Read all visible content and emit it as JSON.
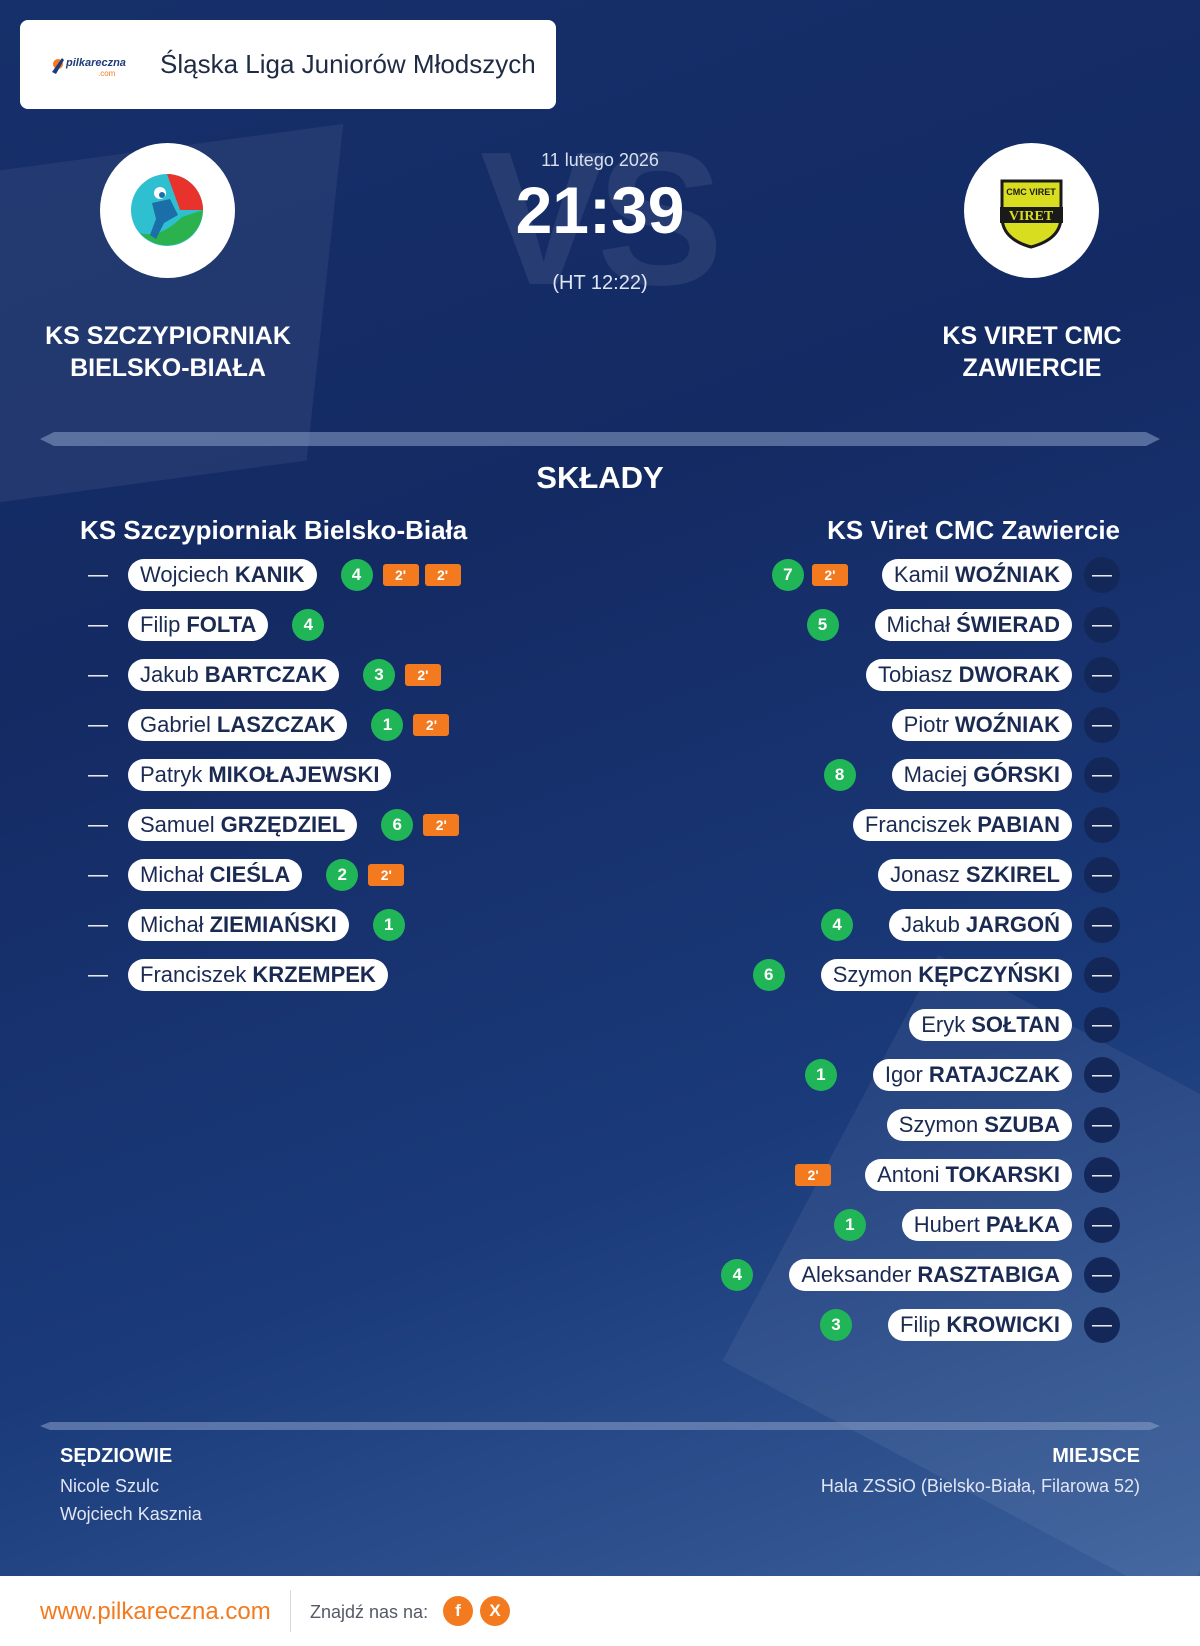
{
  "header": {
    "logo_text": "pilkareczna",
    "logo_sub": ".com",
    "league": "Śląska Liga Juniorów Młodszych"
  },
  "match": {
    "date": "11 lutego 2026",
    "score": "21:39",
    "halftime": "(HT 12:22)",
    "vs_text": "VS"
  },
  "home": {
    "name_line1": "KS SZCZYPIORNIAK",
    "name_line2": "BIELSKO-BIAŁA",
    "lineup_title": "KS Szczypiorniak Bielsko-Biała",
    "crest_colors": [
      "#2ec0d0",
      "#2bb24c",
      "#e8322c"
    ]
  },
  "away": {
    "name_line1": "KS VIRET CMC",
    "name_line2": "ZAWIERCIE",
    "lineup_title": "KS Viret CMC Zawiercie",
    "crest_text_top": "CMC VIRET",
    "crest_text_main": "VIRET",
    "crest_colors": [
      "#d8dd1f",
      "#1a1a1a"
    ]
  },
  "lineups_label": "SKŁADY",
  "dash_symbol": "—",
  "suspension_label": "2'",
  "home_players": [
    {
      "first": "Wojciech",
      "last": "KANIK",
      "goals": "4",
      "suspensions": 2
    },
    {
      "first": "Filip",
      "last": "FOLTA",
      "goals": "4",
      "suspensions": 0
    },
    {
      "first": "Jakub",
      "last": "BARTCZAK",
      "goals": "3",
      "suspensions": 1
    },
    {
      "first": "Gabriel",
      "last": "LASZCZAK",
      "goals": "1",
      "suspensions": 1
    },
    {
      "first": "Patryk",
      "last": "MIKOŁAJEWSKI",
      "goals": "",
      "suspensions": 0
    },
    {
      "first": "Samuel",
      "last": "GRZĘDZIEL",
      "goals": "6",
      "suspensions": 1
    },
    {
      "first": "Michał",
      "last": "CIEŚLA",
      "goals": "2",
      "suspensions": 1
    },
    {
      "first": "Michał",
      "last": "ZIEMIAŃSKI",
      "goals": "1",
      "suspensions": 0
    },
    {
      "first": "Franciszek",
      "last": "KRZEMPEK",
      "goals": "",
      "suspensions": 0
    }
  ],
  "away_players": [
    {
      "first": "Kamil",
      "last": "WOŹNIAK",
      "goals": "7",
      "suspensions": 1
    },
    {
      "first": "Michał",
      "last": "ŚWIERAD",
      "goals": "5",
      "suspensions": 0
    },
    {
      "first": "Tobiasz",
      "last": "DWORAK",
      "goals": "",
      "suspensions": 0
    },
    {
      "first": "Piotr",
      "last": "WOŹNIAK",
      "goals": "",
      "suspensions": 0
    },
    {
      "first": "Maciej",
      "last": "GÓRSKI",
      "goals": "8",
      "suspensions": 0
    },
    {
      "first": "Franciszek",
      "last": "PABIAN",
      "goals": "",
      "suspensions": 0
    },
    {
      "first": "Jonasz",
      "last": "SZKIREL",
      "goals": "",
      "suspensions": 0
    },
    {
      "first": "Jakub",
      "last": "JARGOŃ",
      "goals": "4",
      "suspensions": 0
    },
    {
      "first": "Szymon",
      "last": "KĘPCZYŃSKI",
      "goals": "6",
      "suspensions": 0
    },
    {
      "first": "Eryk",
      "last": "SOŁTAN",
      "goals": "",
      "suspensions": 0
    },
    {
      "first": "Igor",
      "last": "RATAJCZAK",
      "goals": "1",
      "suspensions": 0
    },
    {
      "first": "Szymon",
      "last": "SZUBA",
      "goals": "",
      "suspensions": 0
    },
    {
      "first": "Antoni",
      "last": "TOKARSKI",
      "goals": "",
      "suspensions": 1
    },
    {
      "first": "Hubert",
      "last": "PAŁKA",
      "goals": "1",
      "suspensions": 0
    },
    {
      "first": "Aleksander",
      "last": "RASZTABIGA",
      "goals": "4",
      "suspensions": 0
    },
    {
      "first": "Filip",
      "last": "KROWICKI",
      "goals": "3",
      "suspensions": 0
    }
  ],
  "referees": {
    "title": "SĘDZIOWIE",
    "names": [
      "Nicole Szulc",
      "Wojciech Kasznia"
    ]
  },
  "venue": {
    "title": "MIEJSCE",
    "name": "Hala ZSSiO (Bielsko-Biała, Filarowa 52)"
  },
  "footer": {
    "url": "www.pilkareczna.com",
    "find_us": "Znajdź nas na:",
    "social": [
      {
        "icon": "facebook-icon",
        "glyph": "f"
      },
      {
        "icon": "x-icon",
        "glyph": "X"
      }
    ]
  },
  "colors": {
    "goal_badge": "#20b657",
    "suspension_badge": "#f47a20",
    "accent": "#f47a20",
    "background": "#16306b"
  }
}
